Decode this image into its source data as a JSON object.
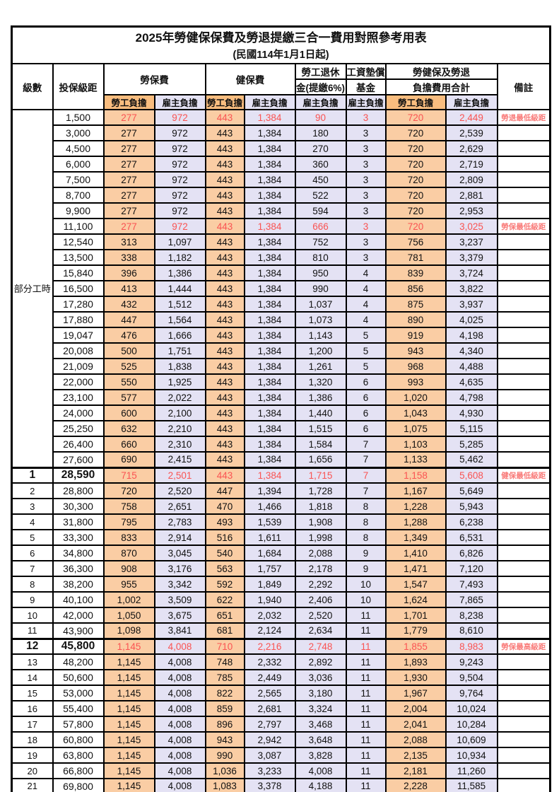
{
  "title": "2025年勞健保保費及勞退提繳三合一費用對照參考用表",
  "subtitle": "(民國114年1月1日起)",
  "header": {
    "level": "級數",
    "bracket": "投保級距",
    "labor_ins": "勞保費",
    "health_ins": "健保費",
    "pension_line1": "勞工退休",
    "pension_line2": "金(提繳6%)",
    "wage_fund_line1": "工資墊償",
    "wage_fund_line2": "基金",
    "total_line1": "勞健保及勞退",
    "total_line2": "負擔費用合計",
    "remark": "備註",
    "employee_label": "勞工負擔",
    "employer_label": "雇主負擔"
  },
  "colors": {
    "employee_col_bg": "#facda4",
    "employee_header_bg": "#f9bd7f",
    "employer_col_bg": "#e4e2f4",
    "red_value_text": "#fa5352",
    "note_text": "#f97b79",
    "border": "#000000"
  },
  "table": {
    "part_time_label": "部分工時",
    "part_time_rowspan": 23,
    "col_kinds": [
      "emp",
      "er",
      "emp",
      "er",
      "er",
      "er",
      "emp",
      "er"
    ],
    "rows": [
      {
        "level": "",
        "bracket": "1,500",
        "v": [
          "277",
          "972",
          "443",
          "1,384",
          "90",
          "3",
          "720",
          "2,449"
        ],
        "note": "勞退最低級距",
        "red": true
      },
      {
        "level": "",
        "bracket": "3,000",
        "v": [
          "277",
          "972",
          "443",
          "1,384",
          "180",
          "3",
          "720",
          "2,539"
        ],
        "note": ""
      },
      {
        "level": "",
        "bracket": "4,500",
        "v": [
          "277",
          "972",
          "443",
          "1,384",
          "270",
          "3",
          "720",
          "2,629"
        ],
        "note": ""
      },
      {
        "level": "",
        "bracket": "6,000",
        "v": [
          "277",
          "972",
          "443",
          "1,384",
          "360",
          "3",
          "720",
          "2,719"
        ],
        "note": ""
      },
      {
        "level": "",
        "bracket": "7,500",
        "v": [
          "277",
          "972",
          "443",
          "1,384",
          "450",
          "3",
          "720",
          "2,809"
        ],
        "note": ""
      },
      {
        "level": "",
        "bracket": "8,700",
        "v": [
          "277",
          "972",
          "443",
          "1,384",
          "522",
          "3",
          "720",
          "2,881"
        ],
        "note": ""
      },
      {
        "level": "",
        "bracket": "9,900",
        "v": [
          "277",
          "972",
          "443",
          "1,384",
          "594",
          "3",
          "720",
          "2,953"
        ],
        "note": ""
      },
      {
        "level": "",
        "bracket": "11,100",
        "v": [
          "277",
          "972",
          "443",
          "1,384",
          "666",
          "3",
          "720",
          "3,025"
        ],
        "note": "勞保最低級距",
        "red": true
      },
      {
        "level": "",
        "bracket": "12,540",
        "v": [
          "313",
          "1,097",
          "443",
          "1,384",
          "752",
          "3",
          "756",
          "3,237"
        ],
        "note": ""
      },
      {
        "level": "",
        "bracket": "13,500",
        "v": [
          "338",
          "1,182",
          "443",
          "1,384",
          "810",
          "3",
          "781",
          "3,379"
        ],
        "note": ""
      },
      {
        "level": "",
        "bracket": "15,840",
        "v": [
          "396",
          "1,386",
          "443",
          "1,384",
          "950",
          "4",
          "839",
          "3,724"
        ],
        "note": ""
      },
      {
        "level": "",
        "bracket": "16,500",
        "v": [
          "413",
          "1,444",
          "443",
          "1,384",
          "990",
          "4",
          "856",
          "3,822"
        ],
        "note": ""
      },
      {
        "level": "",
        "bracket": "17,280",
        "v": [
          "432",
          "1,512",
          "443",
          "1,384",
          "1,037",
          "4",
          "875",
          "3,937"
        ],
        "note": ""
      },
      {
        "level": "",
        "bracket": "17,880",
        "v": [
          "447",
          "1,564",
          "443",
          "1,384",
          "1,073",
          "4",
          "890",
          "4,025"
        ],
        "note": ""
      },
      {
        "level": "",
        "bracket": "19,047",
        "v": [
          "476",
          "1,666",
          "443",
          "1,384",
          "1,143",
          "5",
          "919",
          "4,198"
        ],
        "note": ""
      },
      {
        "level": "",
        "bracket": "20,008",
        "v": [
          "500",
          "1,751",
          "443",
          "1,384",
          "1,200",
          "5",
          "943",
          "4,340"
        ],
        "note": ""
      },
      {
        "level": "",
        "bracket": "21,009",
        "v": [
          "525",
          "1,838",
          "443",
          "1,384",
          "1,261",
          "5",
          "968",
          "4,488"
        ],
        "note": ""
      },
      {
        "level": "",
        "bracket": "22,000",
        "v": [
          "550",
          "1,925",
          "443",
          "1,384",
          "1,320",
          "6",
          "993",
          "4,635"
        ],
        "note": ""
      },
      {
        "level": "",
        "bracket": "23,100",
        "v": [
          "577",
          "2,022",
          "443",
          "1,384",
          "1,386",
          "6",
          "1,020",
          "4,798"
        ],
        "note": ""
      },
      {
        "level": "",
        "bracket": "24,000",
        "v": [
          "600",
          "2,100",
          "443",
          "1,384",
          "1,440",
          "6",
          "1,043",
          "4,930"
        ],
        "note": ""
      },
      {
        "level": "",
        "bracket": "25,250",
        "v": [
          "632",
          "2,210",
          "443",
          "1,384",
          "1,515",
          "6",
          "1,075",
          "5,115"
        ],
        "note": ""
      },
      {
        "level": "",
        "bracket": "26,400",
        "v": [
          "660",
          "2,310",
          "443",
          "1,384",
          "1,584",
          "7",
          "1,103",
          "5,285"
        ],
        "note": ""
      },
      {
        "level": "",
        "bracket": "27,600",
        "v": [
          "690",
          "2,415",
          "443",
          "1,384",
          "1,656",
          "7",
          "1,133",
          "5,462"
        ],
        "note": ""
      },
      {
        "level": "1",
        "bracket": "28,590",
        "v": [
          "715",
          "2,501",
          "443",
          "1,384",
          "1,715",
          "7",
          "1,158",
          "5,608"
        ],
        "note": "健保最低級距",
        "red": true,
        "strong": true,
        "thick": true
      },
      {
        "level": "2",
        "bracket": "28,800",
        "v": [
          "720",
          "2,520",
          "447",
          "1,394",
          "1,728",
          "7",
          "1,167",
          "5,649"
        ],
        "note": ""
      },
      {
        "level": "3",
        "bracket": "30,300",
        "v": [
          "758",
          "2,651",
          "470",
          "1,466",
          "1,818",
          "8",
          "1,228",
          "5,943"
        ],
        "note": ""
      },
      {
        "level": "4",
        "bracket": "31,800",
        "v": [
          "795",
          "2,783",
          "493",
          "1,539",
          "1,908",
          "8",
          "1,288",
          "6,238"
        ],
        "note": ""
      },
      {
        "level": "5",
        "bracket": "33,300",
        "v": [
          "833",
          "2,914",
          "516",
          "1,611",
          "1,998",
          "8",
          "1,349",
          "6,531"
        ],
        "note": ""
      },
      {
        "level": "6",
        "bracket": "34,800",
        "v": [
          "870",
          "3,045",
          "540",
          "1,684",
          "2,088",
          "9",
          "1,410",
          "6,826"
        ],
        "note": ""
      },
      {
        "level": "7",
        "bracket": "36,300",
        "v": [
          "908",
          "3,176",
          "563",
          "1,757",
          "2,178",
          "9",
          "1,471",
          "7,120"
        ],
        "note": ""
      },
      {
        "level": "8",
        "bracket": "38,200",
        "v": [
          "955",
          "3,342",
          "592",
          "1,849",
          "2,292",
          "10",
          "1,547",
          "7,493"
        ],
        "note": ""
      },
      {
        "level": "9",
        "bracket": "40,100",
        "v": [
          "1,002",
          "3,509",
          "622",
          "1,940",
          "2,406",
          "10",
          "1,624",
          "7,865"
        ],
        "note": ""
      },
      {
        "level": "10",
        "bracket": "42,000",
        "v": [
          "1,050",
          "3,675",
          "651",
          "2,032",
          "2,520",
          "11",
          "1,701",
          "8,238"
        ],
        "note": ""
      },
      {
        "level": "11",
        "bracket": "43,900",
        "v": [
          "1,098",
          "3,841",
          "681",
          "2,124",
          "2,634",
          "11",
          "1,779",
          "8,610"
        ],
        "note": ""
      },
      {
        "level": "12",
        "bracket": "45,800",
        "v": [
          "1,145",
          "4,008",
          "710",
          "2,216",
          "2,748",
          "11",
          "1,855",
          "8,983"
        ],
        "note": "勞保最高級距",
        "red": true,
        "strong": true,
        "thick": true
      },
      {
        "level": "13",
        "bracket": "48,200",
        "v": [
          "1,145",
          "4,008",
          "748",
          "2,332",
          "2,892",
          "11",
          "1,893",
          "9,243"
        ],
        "note": ""
      },
      {
        "level": "14",
        "bracket": "50,600",
        "v": [
          "1,145",
          "4,008",
          "785",
          "2,449",
          "3,036",
          "11",
          "1,930",
          "9,504"
        ],
        "note": ""
      },
      {
        "level": "15",
        "bracket": "53,000",
        "v": [
          "1,145",
          "4,008",
          "822",
          "2,565",
          "3,180",
          "11",
          "1,967",
          "9,764"
        ],
        "note": ""
      },
      {
        "level": "16",
        "bracket": "55,400",
        "v": [
          "1,145",
          "4,008",
          "859",
          "2,681",
          "3,324",
          "11",
          "2,004",
          "10,024"
        ],
        "note": ""
      },
      {
        "level": "17",
        "bracket": "57,800",
        "v": [
          "1,145",
          "4,008",
          "896",
          "2,797",
          "3,468",
          "11",
          "2,041",
          "10,284"
        ],
        "note": ""
      },
      {
        "level": "18",
        "bracket": "60,800",
        "v": [
          "1,145",
          "4,008",
          "943",
          "2,942",
          "3,648",
          "11",
          "2,088",
          "10,609"
        ],
        "note": ""
      },
      {
        "level": "19",
        "bracket": "63,800",
        "v": [
          "1,145",
          "4,008",
          "990",
          "3,087",
          "3,828",
          "11",
          "2,135",
          "10,934"
        ],
        "note": ""
      },
      {
        "level": "20",
        "bracket": "66,800",
        "v": [
          "1,145",
          "4,008",
          "1,036",
          "3,233",
          "4,008",
          "11",
          "2,181",
          "11,260"
        ],
        "note": ""
      },
      {
        "level": "21",
        "bracket": "69,800",
        "v": [
          "1,145",
          "4,008",
          "1,083",
          "3,378",
          "4,188",
          "11",
          "2,228",
          "11,585"
        ],
        "note": ""
      }
    ]
  }
}
